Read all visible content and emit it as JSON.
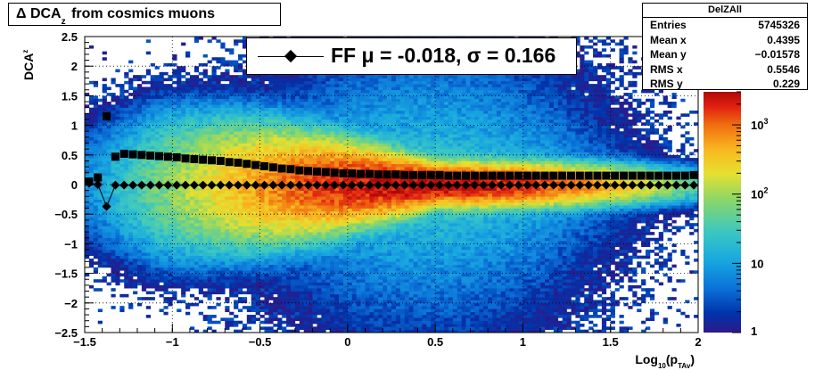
{
  "chart_data": {
    "type": "heatmap",
    "title": "Δ DCA",
    "title_subscript": "z",
    "title_suffix": "from cosmics muons",
    "xlabel": "Log",
    "xlabel_sub": "10",
    "xlabel_suffix": "(p",
    "xlabel_sub2": "TAv",
    "xlabel_close": ")",
    "ylabel": "DCA",
    "ylabel_sub": "z",
    "xlim": [
      -1.5,
      2
    ],
    "ylim": [
      -2.5,
      2.5
    ],
    "x_ticks": [
      "−1.5",
      "−1",
      "−0.5",
      "0",
      "0.5",
      "1",
      "1.5",
      "2"
    ],
    "x_tick_values": [
      -1.5,
      -1,
      -0.5,
      0,
      0.5,
      1,
      1.5,
      2
    ],
    "y_ticks": [
      "−2.5",
      "−2",
      "−1.5",
      "−1",
      "−0.5",
      "0",
      "0.5",
      "1",
      "1.5",
      "2",
      "2.5"
    ],
    "y_tick_values": [
      -2.5,
      -2,
      -1.5,
      -1,
      -0.5,
      0,
      0.5,
      1,
      1.5,
      2,
      2.5
    ],
    "grid": true,
    "colorbar": {
      "scale": "log",
      "labels": [
        "1",
        "10",
        "10",
        "10"
      ],
      "label_exponents": [
        "",
        "",
        "2",
        "3"
      ],
      "range": [
        1,
        3000
      ]
    },
    "stats": {
      "name": "DelZAll",
      "rows": [
        {
          "label": "Entries",
          "value": "5745326"
        },
        {
          "label": "Mean x",
          "value": "0.4395"
        },
        {
          "label": "Mean y",
          "value": "−0.01578"
        },
        {
          "label": "RMS x",
          "value": "0.5546"
        },
        {
          "label": "RMS y",
          "value": "0.229"
        }
      ]
    },
    "legend": {
      "text": "FF μ = -0.018, σ =   0.166",
      "marker": "diamond"
    },
    "series": [
      {
        "name": "FF",
        "marker": "diamond",
        "x": [
          -1.475,
          -1.425,
          -1.375,
          -1.325,
          -1.275,
          -1.225,
          -1.175,
          -1.125,
          -1.075,
          -1.025,
          -0.975,
          -0.925,
          -0.875,
          -0.825,
          -0.775,
          -0.725,
          -0.675,
          -0.625,
          -0.575,
          -0.525,
          -0.475,
          -0.425,
          -0.375,
          -0.325,
          -0.275,
          -0.225,
          -0.175,
          -0.125,
          -0.075,
          -0.025,
          0.025,
          0.075,
          0.125,
          0.175,
          0.225,
          0.275,
          0.325,
          0.375,
          0.425,
          0.475,
          0.525,
          0.575,
          0.625,
          0.675,
          0.725,
          0.775,
          0.825,
          0.875,
          0.925,
          0.975,
          1.025,
          1.075,
          1.125,
          1.175,
          1.225,
          1.275,
          1.325,
          1.375,
          1.425,
          1.475,
          1.525,
          1.575,
          1.625,
          1.675,
          1.725,
          1.775,
          1.825,
          1.875,
          1.925,
          1.975
        ],
        "y": [
          0.02,
          0.0,
          -0.37,
          -0.01,
          -0.01,
          -0.01,
          -0.01,
          -0.01,
          -0.01,
          -0.01,
          -0.01,
          -0.01,
          -0.01,
          -0.01,
          -0.01,
          -0.01,
          -0.01,
          -0.01,
          -0.01,
          -0.01,
          -0.01,
          -0.01,
          -0.01,
          -0.01,
          -0.01,
          -0.01,
          -0.01,
          -0.01,
          -0.01,
          -0.01,
          -0.01,
          -0.01,
          -0.01,
          -0.01,
          -0.01,
          -0.01,
          -0.01,
          -0.01,
          -0.01,
          -0.01,
          -0.01,
          -0.01,
          -0.01,
          -0.01,
          -0.01,
          -0.01,
          -0.01,
          -0.01,
          -0.01,
          -0.01,
          -0.01,
          -0.01,
          -0.01,
          -0.01,
          -0.01,
          -0.01,
          -0.01,
          -0.01,
          -0.01,
          -0.01,
          -0.01,
          -0.01,
          -0.01,
          -0.01,
          -0.01,
          -0.01,
          -0.01,
          -0.01,
          -0.01,
          -0.01
        ]
      },
      {
        "name": "",
        "marker": "square",
        "x": [
          -1.475,
          -1.425,
          -1.375,
          -1.325,
          -1.275,
          -1.225,
          -1.175,
          -1.125,
          -1.075,
          -1.025,
          -0.975,
          -0.925,
          -0.875,
          -0.825,
          -0.775,
          -0.725,
          -0.675,
          -0.625,
          -0.575,
          -0.525,
          -0.475,
          -0.425,
          -0.375,
          -0.325,
          -0.275,
          -0.225,
          -0.175,
          -0.125,
          -0.075,
          -0.025,
          0.025,
          0.075,
          0.125,
          0.175,
          0.225,
          0.275,
          0.325,
          0.375,
          0.425,
          0.475,
          0.525,
          0.575,
          0.625,
          0.675,
          0.725,
          0.775,
          0.825,
          0.875,
          0.925,
          0.975,
          1.025,
          1.075,
          1.125,
          1.175,
          1.225,
          1.275,
          1.325,
          1.375,
          1.425,
          1.475,
          1.525,
          1.575,
          1.625,
          1.675,
          1.725,
          1.775,
          1.825,
          1.875,
          1.925,
          1.975
        ],
        "y": [
          0.05,
          0.12,
          1.15,
          0.47,
          0.52,
          0.51,
          0.5,
          0.49,
          0.48,
          0.47,
          0.46,
          0.44,
          0.43,
          0.42,
          0.41,
          0.4,
          0.38,
          0.37,
          0.35,
          0.33,
          0.31,
          0.29,
          0.27,
          0.26,
          0.24,
          0.23,
          0.22,
          0.21,
          0.2,
          0.19,
          0.19,
          0.18,
          0.18,
          0.17,
          0.17,
          0.17,
          0.16,
          0.16,
          0.16,
          0.16,
          0.16,
          0.15,
          0.15,
          0.15,
          0.15,
          0.15,
          0.15,
          0.15,
          0.15,
          0.15,
          0.15,
          0.15,
          0.15,
          0.15,
          0.15,
          0.15,
          0.15,
          0.15,
          0.15,
          0.15,
          0.15,
          0.15,
          0.15,
          0.15,
          0.15,
          0.15,
          0.15,
          0.15,
          0.15,
          0.16
        ]
      }
    ]
  }
}
